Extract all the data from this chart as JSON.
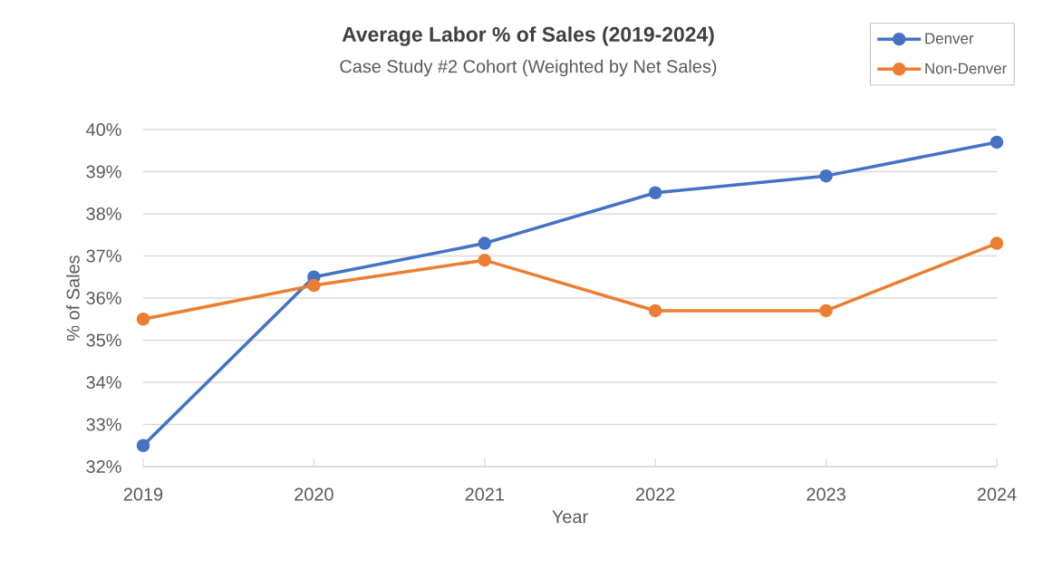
{
  "chart_data": {
    "type": "line",
    "title": "Average Labor % of Sales (2019-2024)",
    "subtitle": "Case Study #2 Cohort (Weighted by Net Sales)",
    "xlabel": "Year",
    "ylabel": "% of Sales",
    "categories": [
      "2019",
      "2020",
      "2021",
      "2022",
      "2023",
      "2024"
    ],
    "series": [
      {
        "name": "Denver",
        "color": "#4472c4",
        "values": [
          32.5,
          36.5,
          37.3,
          38.5,
          38.9,
          39.7
        ]
      },
      {
        "name": "Non-Denver",
        "color": "#ed7d31",
        "values": [
          35.5,
          36.3,
          36.9,
          35.7,
          35.7,
          37.3
        ]
      }
    ],
    "ylim": [
      32,
      40
    ],
    "yticks": [
      {
        "value": 32,
        "label": "32%"
      },
      {
        "value": 33,
        "label": "33%"
      },
      {
        "value": 34,
        "label": "34%"
      },
      {
        "value": 35,
        "label": "35%"
      },
      {
        "value": 36,
        "label": "36%"
      },
      {
        "value": 37,
        "label": "37%"
      },
      {
        "value": 38,
        "label": "38%"
      },
      {
        "value": 39,
        "label": "39%"
      },
      {
        "value": 40,
        "label": "40%"
      }
    ],
    "grid": "y",
    "legend": "top right",
    "marker": "circle",
    "line_style": "solid"
  }
}
